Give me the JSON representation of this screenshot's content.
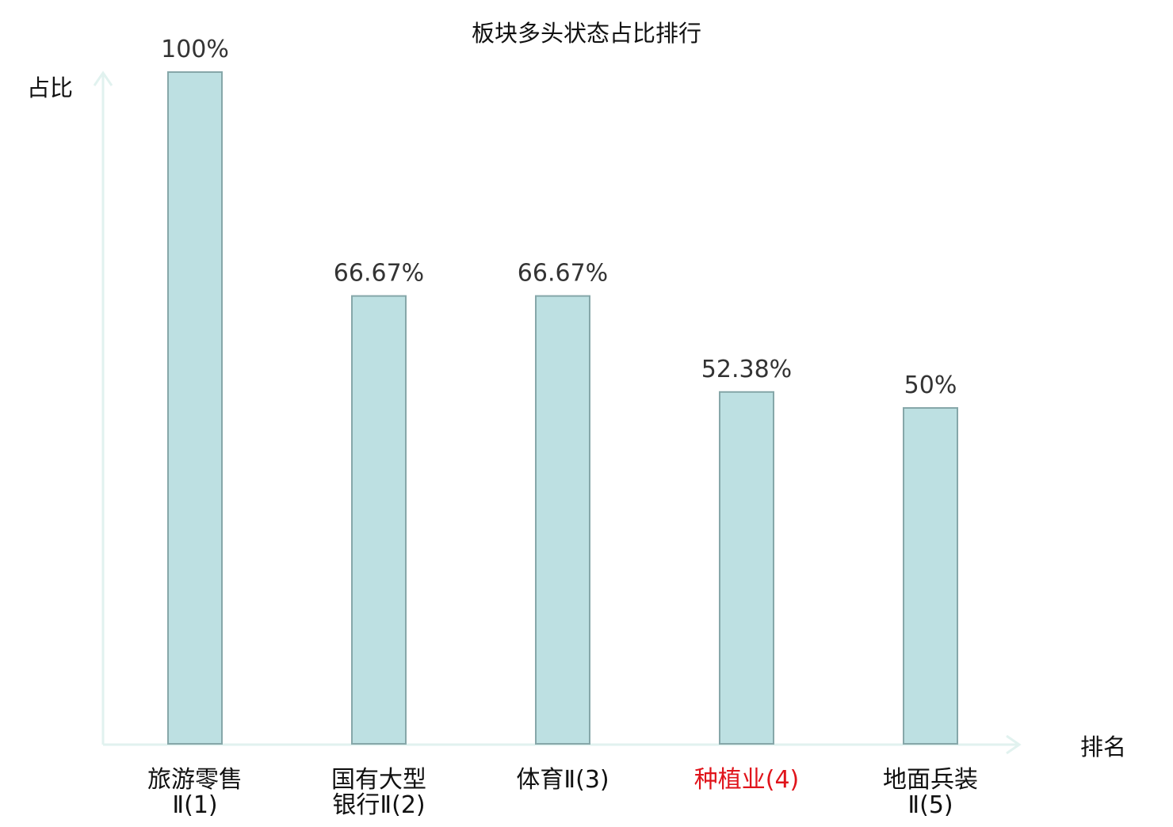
{
  "chart_data": {
    "type": "bar",
    "title": "板块多头状态占比排行",
    "ylabel": "占比",
    "xlabel": "排名",
    "ylim": [
      0,
      100
    ],
    "grid": false,
    "unit": "%",
    "categories": [
      {
        "lines": [
          "旅游零售",
          "Ⅱ(1)"
        ],
        "highlight": false
      },
      {
        "lines": [
          "国有大型",
          "银行Ⅱ(2)"
        ],
        "highlight": false
      },
      {
        "lines": [
          "体育Ⅱ(3)"
        ],
        "highlight": false
      },
      {
        "lines": [
          "种植业(4)"
        ],
        "highlight": true
      },
      {
        "lines": [
          "地面兵装",
          "Ⅱ(5)"
        ],
        "highlight": false
      }
    ],
    "values": [
      100,
      66.67,
      66.67,
      52.38,
      50
    ],
    "value_labels": [
      "100%",
      "66.67%",
      "66.67%",
      "52.38%",
      "50%"
    ],
    "colors": {
      "bar_fill": "#bde0e2",
      "bar_stroke": "#86a7a9",
      "axis": "#e1f2ef",
      "highlight": "#e0141b",
      "text": "#222222"
    }
  }
}
